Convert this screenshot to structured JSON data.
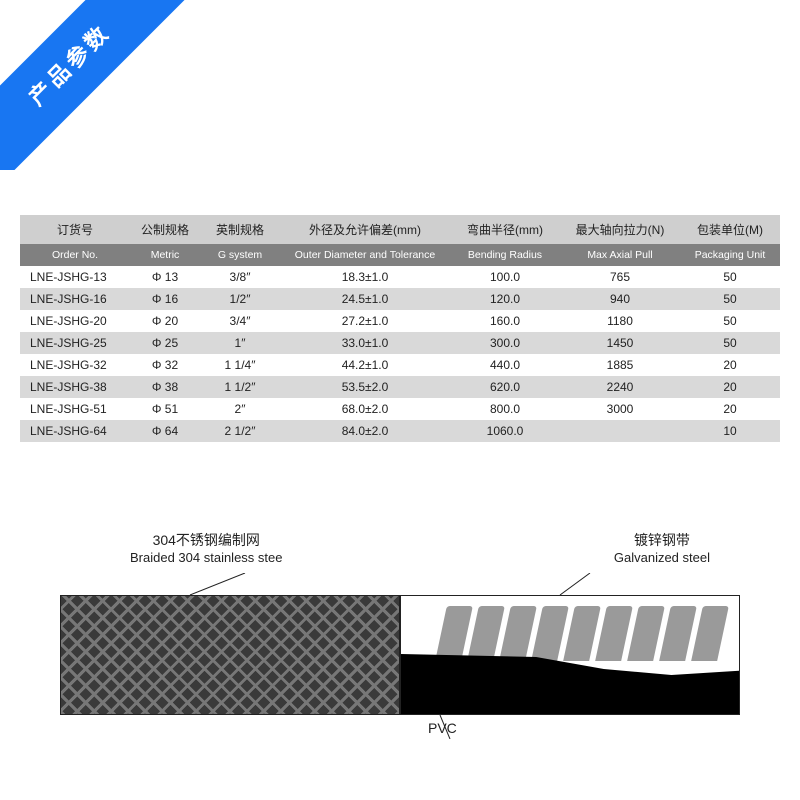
{
  "ribbon": {
    "text": "产品参数"
  },
  "table": {
    "headers_cn": [
      "订货号",
      "公制规格",
      "英制规格",
      "外径及允许偏差(mm)",
      "弯曲半径(mm)",
      "最大轴向拉力(N)",
      "包装单位(M)"
    ],
    "headers_en": [
      "Order No.",
      "Metric",
      "G system",
      "Outer Diameter and Tolerance",
      "Bending Radius",
      "Max Axial Pull",
      "Packaging Unit"
    ],
    "col_widths": [
      "110px",
      "70px",
      "80px",
      "170px",
      "110px",
      "120px",
      "100px"
    ],
    "rows": [
      [
        "LNE-JSHG-13",
        "Φ 13",
        "3/8″",
        "18.3±1.0",
        "100.0",
        "765",
        "50"
      ],
      [
        "LNE-JSHG-16",
        "Φ 16",
        "1/2″",
        "24.5±1.0",
        "120.0",
        "940",
        "50"
      ],
      [
        "LNE-JSHG-20",
        "Φ 20",
        "3/4″",
        "27.2±1.0",
        "160.0",
        "1180",
        "50"
      ],
      [
        "LNE-JSHG-25",
        "Φ 25",
        "1″",
        "33.0±1.0",
        "300.0",
        "1450",
        "50"
      ],
      [
        "LNE-JSHG-32",
        "Φ 32",
        "1 1/4″",
        "44.2±1.0",
        "440.0",
        "1885",
        "20"
      ],
      [
        "LNE-JSHG-38",
        "Φ 38",
        "1 1/2″",
        "53.5±2.0",
        "620.0",
        "2240",
        "20"
      ],
      [
        "LNE-JSHG-51",
        "Φ 51",
        "2″",
        "68.0±2.0",
        "800.0",
        "3000",
        "20"
      ],
      [
        "LNE-JSHG-64",
        "Φ 64",
        "2 1/2″",
        "84.0±2.0",
        "1060.0",
        "",
        "10"
      ]
    ],
    "header_bg_cn": "#cfcfcf",
    "header_bg_en": "#808080",
    "row_even_bg": "#d9d9d9",
    "row_odd_bg": "#ffffff"
  },
  "diagram": {
    "label_braided_cn": "304不锈钢编制网",
    "label_braided_en": "Braided 304 stainless stee",
    "label_galv_cn": "镀锌钢带",
    "label_galv_en": "Galvanized steel",
    "label_pvc": "PVC",
    "colors": {
      "braided_bg": "#3a3a3a",
      "braided_line": "#777777",
      "galv_strip": "#9a9a9a",
      "pvc": "#000000",
      "leader": "#222222"
    }
  }
}
